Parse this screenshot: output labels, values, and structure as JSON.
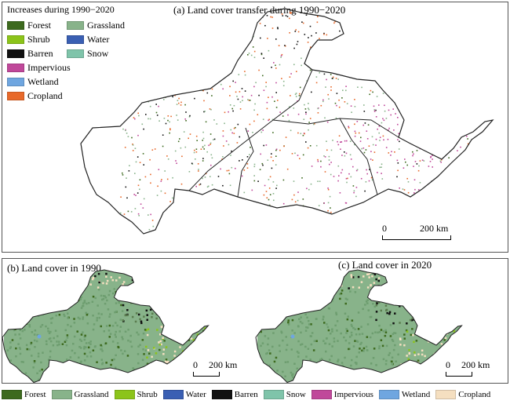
{
  "panel_a": {
    "title": "(a) Land cover transfer during 1990−2020",
    "legend_title": "Increases during 1990−2020",
    "legend": [
      {
        "label": "Forest",
        "color": "#3d6a1e"
      },
      {
        "label": "Grassland",
        "color": "#88b38a"
      },
      {
        "label": "Shrub",
        "color": "#8cc41a"
      },
      {
        "label": "Water",
        "color": "#3a5fb3"
      },
      {
        "label": "Barren",
        "color": "#111111"
      },
      {
        "label": "Snow",
        "color": "#7fc4aa"
      },
      {
        "label": "Impervious",
        "color": "#c0489a"
      },
      {
        "label": "Wetland",
        "color": "#6fa6e0"
      },
      {
        "label": "Cropland",
        "color": "#e8692a"
      }
    ],
    "scale": {
      "zero": "0",
      "label": "200 km"
    }
  },
  "panel_b": {
    "title": "(b) Land cover in 1990",
    "scale": {
      "zero": "0",
      "label": "200 km"
    }
  },
  "panel_c": {
    "title": "(c) Land cover in 2020",
    "scale": {
      "zero": "0",
      "label": "200 km"
    }
  },
  "bottom_legend": [
    {
      "label": "Forest",
      "color": "#3d6a1e"
    },
    {
      "label": "Grassland",
      "color": "#88b38a"
    },
    {
      "label": "Shrub",
      "color": "#8cc41a"
    },
    {
      "label": "Water",
      "color": "#3a5fb3"
    },
    {
      "label": "Barren",
      "color": "#111111"
    },
    {
      "label": "Snow",
      "color": "#7fc4aa"
    },
    {
      "label": "Impervious",
      "color": "#c0489a"
    },
    {
      "label": "Wetland",
      "color": "#6fa6e0"
    },
    {
      "label": "Cropland",
      "color": "#f5dfc0"
    }
  ]
}
